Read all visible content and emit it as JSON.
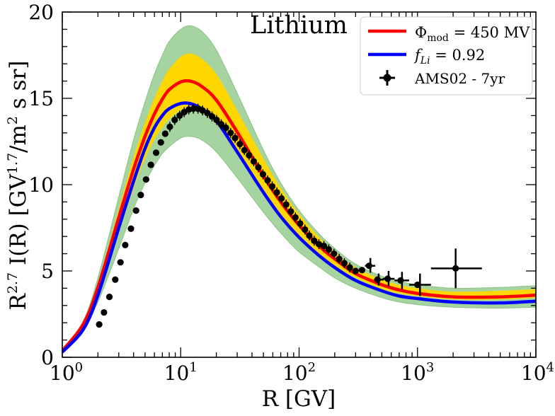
{
  "chart_data": {
    "type": "line",
    "title": "Lithium",
    "xlabel": "R [GV]",
    "ylabel": "R^2.7 I(R) [GV^1.7/m^2 s sr]",
    "xscale": "log",
    "xlim": [
      1,
      10000
    ],
    "ylim": [
      0,
      20
    ],
    "xticks": [
      {
        "value": 1,
        "base": "10",
        "exp": "0"
      },
      {
        "value": 10,
        "base": "10",
        "exp": "1"
      },
      {
        "value": 100,
        "base": "10",
        "exp": "2"
      },
      {
        "value": 1000,
        "base": "10",
        "exp": "3"
      },
      {
        "value": 10000,
        "base": "10",
        "exp": "4"
      }
    ],
    "yticks": [
      0,
      5,
      10,
      15,
      20
    ],
    "legend_position": "top-right",
    "legend": {
      "red": {
        "symbol": "Φ",
        "sub": "mod",
        "rest": " = 450 MV",
        "color": "#ff0000"
      },
      "blue": {
        "symbol": "f",
        "sub": "Li",
        "rest": " = 0.92",
        "color": "#0000ff"
      },
      "data": {
        "label": "AMS02 - 7yr",
        "color": "#000000"
      }
    },
    "bands": [
      {
        "name": "outer uncertainty band",
        "color": "#a6d4a0",
        "upper": [
          [
            1,
            0.4
          ],
          [
            1.5,
            2.1
          ],
          [
            2,
            4.6
          ],
          [
            3,
            9.3
          ],
          [
            4,
            12.6
          ],
          [
            5,
            14.8
          ],
          [
            6,
            16.4
          ],
          [
            7,
            17.5
          ],
          [
            8,
            18.3
          ],
          [
            10,
            19.0
          ],
          [
            12,
            19.2
          ],
          [
            15,
            18.9
          ],
          [
            20,
            17.8
          ],
          [
            30,
            15.3
          ],
          [
            50,
            12.0
          ],
          [
            70,
            10.1
          ],
          [
            100,
            8.5
          ],
          [
            150,
            7.1
          ],
          [
            200,
            6.3
          ],
          [
            300,
            5.4
          ],
          [
            500,
            4.7
          ],
          [
            700,
            4.4
          ],
          [
            1000,
            4.2
          ],
          [
            2000,
            4.0
          ],
          [
            5000,
            4.05
          ],
          [
            10000,
            4.15
          ]
        ],
        "lower": [
          [
            1,
            0.35
          ],
          [
            1.5,
            1.6
          ],
          [
            2,
            3.2
          ],
          [
            3,
            6.3
          ],
          [
            4,
            8.6
          ],
          [
            5,
            10.1
          ],
          [
            6,
            11.1
          ],
          [
            7,
            11.8
          ],
          [
            8,
            12.2
          ],
          [
            10,
            12.7
          ],
          [
            12,
            12.8
          ],
          [
            15,
            12.6
          ],
          [
            20,
            11.9
          ],
          [
            30,
            10.4
          ],
          [
            50,
            8.4
          ],
          [
            70,
            7.2
          ],
          [
            100,
            6.1
          ],
          [
            150,
            5.2
          ],
          [
            200,
            4.6
          ],
          [
            300,
            4.0
          ],
          [
            500,
            3.45
          ],
          [
            700,
            3.2
          ],
          [
            1000,
            3.05
          ],
          [
            2000,
            2.9
          ],
          [
            5000,
            2.85
          ],
          [
            10000,
            2.9
          ]
        ]
      },
      {
        "name": "inner uncertainty band",
        "color": "#ffd700",
        "upper": [
          [
            1,
            0.4
          ],
          [
            1.5,
            2.0
          ],
          [
            2,
            4.3
          ],
          [
            3,
            8.6
          ],
          [
            4,
            11.6
          ],
          [
            5,
            13.6
          ],
          [
            6,
            15.0
          ],
          [
            7,
            16.0
          ],
          [
            8,
            16.7
          ],
          [
            10,
            17.4
          ],
          [
            12,
            17.6
          ],
          [
            15,
            17.3
          ],
          [
            20,
            16.4
          ],
          [
            30,
            14.3
          ],
          [
            50,
            11.5
          ],
          [
            70,
            9.8
          ],
          [
            100,
            8.3
          ],
          [
            150,
            6.9
          ],
          [
            200,
            6.1
          ],
          [
            300,
            5.2
          ],
          [
            500,
            4.5
          ],
          [
            700,
            4.2
          ],
          [
            1000,
            4.0
          ],
          [
            2000,
            3.8
          ],
          [
            5000,
            3.85
          ],
          [
            10000,
            3.95
          ]
        ],
        "lower": [
          [
            1,
            0.35
          ],
          [
            1.5,
            1.75
          ],
          [
            2,
            3.65
          ],
          [
            3,
            7.2
          ],
          [
            4,
            9.8
          ],
          [
            5,
            11.5
          ],
          [
            6,
            12.6
          ],
          [
            7,
            13.3
          ],
          [
            8,
            13.8
          ],
          [
            10,
            14.3
          ],
          [
            12,
            14.4
          ],
          [
            15,
            14.2
          ],
          [
            20,
            13.5
          ],
          [
            30,
            11.9
          ],
          [
            50,
            9.6
          ],
          [
            70,
            8.2
          ],
          [
            100,
            7.0
          ],
          [
            150,
            5.9
          ],
          [
            200,
            5.3
          ],
          [
            300,
            4.6
          ],
          [
            500,
            3.95
          ],
          [
            700,
            3.7
          ],
          [
            1000,
            3.55
          ],
          [
            2000,
            3.35
          ],
          [
            5000,
            3.35
          ],
          [
            10000,
            3.45
          ]
        ]
      }
    ],
    "series": [
      {
        "name": "Phi_mod = 450 MV",
        "color": "#ff0000",
        "points": [
          [
            1,
            0.38
          ],
          [
            1.5,
            1.9
          ],
          [
            2,
            4.05
          ],
          [
            3,
            8.1
          ],
          [
            4,
            10.9
          ],
          [
            5,
            12.8
          ],
          [
            6,
            14.1
          ],
          [
            7,
            14.95
          ],
          [
            8,
            15.5
          ],
          [
            10,
            15.95
          ],
          [
            12,
            16.0
          ],
          [
            15,
            15.7
          ],
          [
            20,
            14.9
          ],
          [
            30,
            13.05
          ],
          [
            50,
            10.5
          ],
          [
            70,
            9.0
          ],
          [
            100,
            7.65
          ],
          [
            150,
            6.4
          ],
          [
            200,
            5.7
          ],
          [
            300,
            4.85
          ],
          [
            500,
            4.2
          ],
          [
            700,
            3.9
          ],
          [
            1000,
            3.7
          ],
          [
            2000,
            3.5
          ],
          [
            5000,
            3.5
          ],
          [
            10000,
            3.6
          ]
        ]
      },
      {
        "name": "f_Li = 0.92",
        "color": "#0000ff",
        "points": [
          [
            1,
            0.3
          ],
          [
            1.5,
            1.6
          ],
          [
            2,
            3.6
          ],
          [
            3,
            7.5
          ],
          [
            4,
            10.2
          ],
          [
            5,
            12.1
          ],
          [
            6,
            13.3
          ],
          [
            7,
            14.0
          ],
          [
            8,
            14.4
          ],
          [
            10,
            14.7
          ],
          [
            12,
            14.7
          ],
          [
            15,
            14.4
          ],
          [
            20,
            13.7
          ],
          [
            30,
            11.9
          ],
          [
            50,
            9.55
          ],
          [
            70,
            8.15
          ],
          [
            100,
            6.95
          ],
          [
            150,
            5.85
          ],
          [
            200,
            5.2
          ],
          [
            300,
            4.45
          ],
          [
            500,
            3.85
          ],
          [
            700,
            3.55
          ],
          [
            1000,
            3.4
          ],
          [
            2000,
            3.2
          ],
          [
            5000,
            3.15
          ],
          [
            10000,
            3.25
          ]
        ]
      }
    ],
    "data_points": [
      {
        "x": 2.05,
        "y": 1.9
      },
      {
        "x": 2.25,
        "y": 2.6
      },
      {
        "x": 2.5,
        "y": 3.5
      },
      {
        "x": 2.8,
        "y": 4.5
      },
      {
        "x": 3.1,
        "y": 5.5
      },
      {
        "x": 3.4,
        "y": 6.5
      },
      {
        "x": 3.8,
        "y": 7.45
      },
      {
        "x": 4.2,
        "y": 8.5
      },
      {
        "x": 4.6,
        "y": 9.4
      },
      {
        "x": 5.1,
        "y": 10.3
      },
      {
        "x": 5.6,
        "y": 11.15
      },
      {
        "x": 6.2,
        "y": 11.85
      },
      {
        "x": 6.8,
        "y": 12.45
      },
      {
        "x": 7.4,
        "y": 12.95
      },
      {
        "x": 8.1,
        "y": 13.35
      },
      {
        "x": 8.9,
        "y": 13.75
      },
      {
        "x": 9.8,
        "y": 14.0
      },
      {
        "x": 10.7,
        "y": 14.2
      },
      {
        "x": 11.7,
        "y": 14.35
      },
      {
        "x": 12.8,
        "y": 14.4
      },
      {
        "x": 14.0,
        "y": 14.4
      },
      {
        "x": 15.3,
        "y": 14.3
      },
      {
        "x": 16.8,
        "y": 14.15
      },
      {
        "x": 18.4,
        "y": 13.95
      },
      {
        "x": 20.1,
        "y": 13.75
      },
      {
        "x": 22.0,
        "y": 13.5
      },
      {
        "x": 24.1,
        "y": 13.3
      },
      {
        "x": 26.4,
        "y": 13.0
      },
      {
        "x": 28.8,
        "y": 12.7
      },
      {
        "x": 31.6,
        "y": 12.35
      },
      {
        "x": 34.5,
        "y": 12.0
      },
      {
        "x": 37.8,
        "y": 11.7
      },
      {
        "x": 41.4,
        "y": 11.35
      },
      {
        "x": 45.3,
        "y": 11.0
      },
      {
        "x": 49.5,
        "y": 10.6
      },
      {
        "x": 54.2,
        "y": 10.25
      },
      {
        "x": 59.3,
        "y": 9.9
      },
      {
        "x": 64.9,
        "y": 9.55
      },
      {
        "x": 71.0,
        "y": 9.2
      },
      {
        "x": 77.7,
        "y": 8.85
      },
      {
        "x": 85.1,
        "y": 8.45
      },
      {
        "x": 93.1,
        "y": 8.1
      },
      {
        "x": 102,
        "y": 7.75
      },
      {
        "x": 112,
        "y": 7.4
      },
      {
        "x": 122,
        "y": 7.05
      },
      {
        "x": 134,
        "y": 6.75
      },
      {
        "x": 147,
        "y": 6.55
      },
      {
        "x": 162,
        "y": 6.45
      },
      {
        "x": 178,
        "y": 6.25
      },
      {
        "x": 197,
        "y": 6.0
      },
      {
        "x": 218,
        "y": 5.7
      },
      {
        "x": 241,
        "y": 5.45
      },
      {
        "x": 268,
        "y": 5.2
      },
      {
        "x": 300,
        "y": 5.0
      },
      {
        "x": 340,
        "y": 5.05
      },
      {
        "x": 390,
        "y": 5.3
      },
      {
        "x": 460,
        "y": 4.5
      },
      {
        "x": 560,
        "y": 4.55
      },
      {
        "x": 720,
        "y": 4.45
      },
      {
        "x": 1000,
        "y": 4.2
      },
      {
        "x": 2100,
        "y": 5.15
      }
    ],
    "data_errors": [
      {
        "x": 400,
        "y": 5.3,
        "xlo": 360,
        "xhi": 440,
        "ylo": 4.9,
        "yhi": 5.75
      },
      {
        "x": 470,
        "y": 4.5,
        "xlo": 430,
        "xhi": 520,
        "ylo": 4.15,
        "yhi": 4.85
      },
      {
        "x": 570,
        "y": 4.55,
        "xlo": 510,
        "xhi": 640,
        "ylo": 4.1,
        "yhi": 5.0
      },
      {
        "x": 740,
        "y": 4.45,
        "xlo": 640,
        "xhi": 850,
        "ylo": 3.95,
        "yhi": 4.95
      },
      {
        "x": 1050,
        "y": 4.2,
        "xlo": 850,
        "xhi": 1300,
        "ylo": 3.55,
        "yhi": 4.85
      },
      {
        "x": 2100,
        "y": 5.15,
        "xlo": 1300,
        "xhi": 3500,
        "ylo": 4.0,
        "yhi": 6.3
      }
    ]
  }
}
